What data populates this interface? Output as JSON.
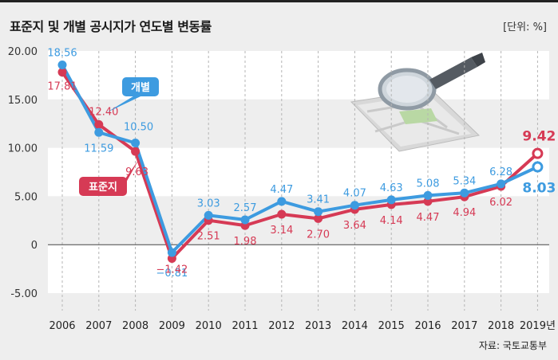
{
  "title": "표준지 및 개별 공시지가 연도별 변동률",
  "unit": "[단위: %]",
  "source": "자료: 국토교통부",
  "chart_data": {
    "type": "line",
    "title": "표준지 및 개별 공시지가 연도별 변동률",
    "categories": [
      "2006",
      "2007",
      "2008",
      "2009",
      "2010",
      "2011",
      "2012",
      "2013",
      "2014",
      "2015",
      "2016",
      "2017",
      "2018",
      "2019"
    ],
    "x_tick_labels": [
      "2006",
      "2007",
      "2008",
      "2009",
      "2010",
      "2011",
      "2012",
      "2013",
      "2014",
      "2015",
      "2016",
      "2017",
      "2018",
      "2019년"
    ],
    "ylim": [
      -5,
      20
    ],
    "y_ticks": [
      20,
      15,
      10,
      5,
      0,
      -5
    ],
    "y_tick_labels": [
      "20.00",
      "15.00",
      "10.00",
      "5.00",
      "0",
      "-5.00"
    ],
    "series": [
      {
        "name": "개별",
        "color": "#3d9be0",
        "values": [
          18.56,
          11.59,
          10.5,
          -0.81,
          3.03,
          2.57,
          4.47,
          3.41,
          4.07,
          4.63,
          5.08,
          5.34,
          6.28,
          8.03
        ],
        "labels": [
          "18.56",
          "11.59",
          "10.50",
          "−0.81",
          "3.03",
          "2.57",
          "4.47",
          "3.41",
          "4.07",
          "4.63",
          "5.08",
          "5.34",
          "6.28",
          "8.03"
        ]
      },
      {
        "name": "표준지",
        "color": "#d63a55",
        "values": [
          17.81,
          12.4,
          9.63,
          -1.42,
          2.51,
          1.98,
          3.14,
          2.7,
          3.64,
          4.14,
          4.47,
          4.94,
          6.02,
          9.42
        ],
        "labels": [
          "17.81",
          "12.40",
          "9.63",
          "−1.42",
          "2.51",
          "1.98",
          "3.14",
          "2.70",
          "3.64",
          "4.14",
          "4.47",
          "4.94",
          "6.02",
          "9.42"
        ]
      }
    ]
  }
}
